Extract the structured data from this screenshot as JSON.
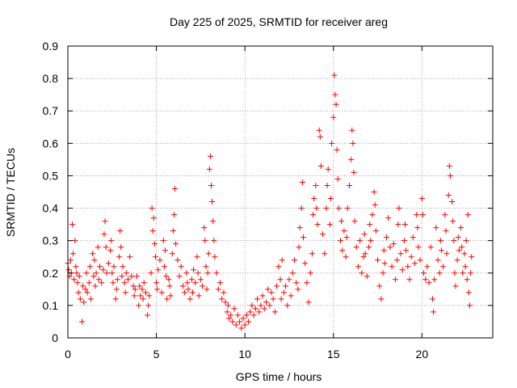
{
  "colors": {
    "series": "#ff0000",
    "grid": "#a0a0a0",
    "axis": "#000000",
    "background": "#ffffff"
  },
  "chart_data": {
    "type": "scatter",
    "title": "Day 225 of 2025, SRMTID for receiver areg",
    "xlabel": "GPS time / hours",
    "ylabel": "SRMTID / TECUs",
    "xlim": [
      0,
      24
    ],
    "ylim": [
      0,
      0.9
    ],
    "grid": true,
    "marker": "plus",
    "xticks": [
      0,
      5,
      10,
      15,
      20
    ],
    "xtick_labels": [
      "0",
      "5",
      "10",
      "15",
      "20"
    ],
    "yticks": [
      0,
      0.1,
      0.2,
      0.3,
      0.4,
      0.5,
      0.6,
      0.7,
      0.8,
      0.9
    ],
    "ytick_labels": [
      "0",
      "0.1",
      "0.2",
      "0.3",
      "0.4",
      "0.5",
      "0.6",
      "0.7",
      "0.8",
      "0.9"
    ],
    "series": [
      {
        "name": "SRMTID",
        "points": [
          [
            0.0,
            0.23
          ],
          [
            0.05,
            0.21
          ],
          [
            0.1,
            0.19
          ],
          [
            0.15,
            0.24
          ],
          [
            0.2,
            0.2
          ],
          [
            0.25,
            0.35
          ],
          [
            0.3,
            0.26
          ],
          [
            0.35,
            0.18
          ],
          [
            0.4,
            0.3
          ],
          [
            0.45,
            0.22
          ],
          [
            0.5,
            0.2
          ],
          [
            0.55,
            0.17
          ],
          [
            0.6,
            0.14
          ],
          [
            0.65,
            0.19
          ],
          [
            0.7,
            0.12
          ],
          [
            0.8,
            0.05
          ],
          [
            0.85,
            0.16
          ],
          [
            0.9,
            0.11
          ],
          [
            1.0,
            0.15
          ],
          [
            1.05,
            0.2
          ],
          [
            1.1,
            0.14
          ],
          [
            1.2,
            0.17
          ],
          [
            1.25,
            0.22
          ],
          [
            1.3,
            0.12
          ],
          [
            1.4,
            0.26
          ],
          [
            1.45,
            0.19
          ],
          [
            1.5,
            0.24
          ],
          [
            1.55,
            0.16
          ],
          [
            1.6,
            0.2
          ],
          [
            1.7,
            0.28
          ],
          [
            1.75,
            0.18
          ],
          [
            1.8,
            0.22
          ],
          [
            1.9,
            0.17
          ],
          [
            2.0,
            0.21
          ],
          [
            2.05,
            0.32
          ],
          [
            2.1,
            0.36
          ],
          [
            2.15,
            0.28
          ],
          [
            2.2,
            0.2
          ],
          [
            2.3,
            0.23
          ],
          [
            2.4,
            0.27
          ],
          [
            2.45,
            0.3
          ],
          [
            2.5,
            0.2
          ],
          [
            2.55,
            0.17
          ],
          [
            2.6,
            0.22
          ],
          [
            2.7,
            0.12
          ],
          [
            2.75,
            0.15
          ],
          [
            2.8,
            0.18
          ],
          [
            2.9,
            0.25
          ],
          [
            2.95,
            0.33
          ],
          [
            3.0,
            0.28
          ],
          [
            3.05,
            0.19
          ],
          [
            3.1,
            0.22
          ],
          [
            3.2,
            0.17
          ],
          [
            3.25,
            0.14
          ],
          [
            3.3,
            0.2
          ],
          [
            3.4,
            0.18
          ],
          [
            3.5,
            0.25
          ],
          [
            3.6,
            0.19
          ],
          [
            3.7,
            0.16
          ],
          [
            3.75,
            0.13
          ],
          [
            3.8,
            0.15
          ],
          [
            3.9,
            0.19
          ],
          [
            4.0,
            0.1
          ],
          [
            4.05,
            0.16
          ],
          [
            4.1,
            0.13
          ],
          [
            4.2,
            0.15
          ],
          [
            4.25,
            0.12
          ],
          [
            4.3,
            0.17
          ],
          [
            4.4,
            0.14
          ],
          [
            4.5,
            0.07
          ],
          [
            4.55,
            0.1
          ],
          [
            4.6,
            0.13
          ],
          [
            4.7,
            0.2
          ],
          [
            4.75,
            0.4
          ],
          [
            4.8,
            0.33
          ],
          [
            4.85,
            0.37
          ],
          [
            4.9,
            0.29
          ],
          [
            4.95,
            0.25
          ],
          [
            5.0,
            0.17
          ],
          [
            5.05,
            0.15
          ],
          [
            5.1,
            0.21
          ],
          [
            5.2,
            0.24
          ],
          [
            5.3,
            0.14
          ],
          [
            5.4,
            0.3
          ],
          [
            5.45,
            0.22
          ],
          [
            5.5,
            0.27
          ],
          [
            5.55,
            0.19
          ],
          [
            5.6,
            0.12
          ],
          [
            5.7,
            0.18
          ],
          [
            5.75,
            0.16
          ],
          [
            5.8,
            0.13
          ],
          [
            5.9,
            0.26
          ],
          [
            5.95,
            0.33
          ],
          [
            6.0,
            0.38
          ],
          [
            6.05,
            0.46
          ],
          [
            6.1,
            0.29
          ],
          [
            6.2,
            0.24
          ],
          [
            6.3,
            0.19
          ],
          [
            6.4,
            0.22
          ],
          [
            6.5,
            0.16
          ],
          [
            6.6,
            0.14
          ],
          [
            6.7,
            0.2
          ],
          [
            6.75,
            0.17
          ],
          [
            6.8,
            0.15
          ],
          [
            6.9,
            0.12
          ],
          [
            7.0,
            0.18
          ],
          [
            7.05,
            0.14
          ],
          [
            7.1,
            0.21
          ],
          [
            7.2,
            0.17
          ],
          [
            7.3,
            0.25
          ],
          [
            7.35,
            0.2
          ],
          [
            7.4,
            0.13
          ],
          [
            7.5,
            0.18
          ],
          [
            7.6,
            0.16
          ],
          [
            7.7,
            0.34
          ],
          [
            7.75,
            0.3
          ],
          [
            7.8,
            0.22
          ],
          [
            7.85,
            0.15
          ],
          [
            7.9,
            0.2
          ],
          [
            7.95,
            0.26
          ],
          [
            8.0,
            0.52
          ],
          [
            8.05,
            0.56
          ],
          [
            8.1,
            0.47
          ],
          [
            8.15,
            0.42
          ],
          [
            8.2,
            0.36
          ],
          [
            8.25,
            0.3
          ],
          [
            8.3,
            0.25
          ],
          [
            8.4,
            0.2
          ],
          [
            8.5,
            0.15
          ],
          [
            8.6,
            0.17
          ],
          [
            8.7,
            0.12
          ],
          [
            8.8,
            0.14
          ],
          [
            8.9,
            0.11
          ],
          [
            9.0,
            0.08
          ],
          [
            9.05,
            0.1
          ],
          [
            9.1,
            0.06
          ],
          [
            9.2,
            0.07
          ],
          [
            9.3,
            0.05
          ],
          [
            9.4,
            0.09
          ],
          [
            9.5,
            0.04
          ],
          [
            9.6,
            0.07
          ],
          [
            9.7,
            0.05
          ],
          [
            9.8,
            0.03
          ],
          [
            9.9,
            0.06
          ],
          [
            10.0,
            0.04
          ],
          [
            10.1,
            0.07
          ],
          [
            10.2,
            0.05
          ],
          [
            10.3,
            0.08
          ],
          [
            10.4,
            0.1
          ],
          [
            10.5,
            0.07
          ],
          [
            10.6,
            0.09
          ],
          [
            10.7,
            0.12
          ],
          [
            10.8,
            0.08
          ],
          [
            10.9,
            0.1
          ],
          [
            11.0,
            0.13
          ],
          [
            11.1,
            0.09
          ],
          [
            11.2,
            0.11
          ],
          [
            11.3,
            0.15
          ],
          [
            11.4,
            0.1
          ],
          [
            11.5,
            0.14
          ],
          [
            11.6,
            0.12
          ],
          [
            11.7,
            0.08
          ],
          [
            11.8,
            0.16
          ],
          [
            11.9,
            0.22
          ],
          [
            12.0,
            0.18
          ],
          [
            12.05,
            0.12
          ],
          [
            12.1,
            0.24
          ],
          [
            12.2,
            0.14
          ],
          [
            12.3,
            0.16
          ],
          [
            12.4,
            0.1
          ],
          [
            12.5,
            0.18
          ],
          [
            12.6,
            0.13
          ],
          [
            12.7,
            0.2
          ],
          [
            12.8,
            0.24
          ],
          [
            12.9,
            0.17
          ],
          [
            13.0,
            0.15
          ],
          [
            13.05,
            0.28
          ],
          [
            13.1,
            0.34
          ],
          [
            13.2,
            0.4
          ],
          [
            13.25,
            0.48
          ],
          [
            13.3,
            0.31
          ],
          [
            13.4,
            0.23
          ],
          [
            13.5,
            0.17
          ],
          [
            13.6,
            0.11
          ],
          [
            13.7,
            0.2
          ],
          [
            13.8,
            0.26
          ],
          [
            13.85,
            0.38
          ],
          [
            13.9,
            0.43
          ],
          [
            14.0,
            0.47
          ],
          [
            14.05,
            0.4
          ],
          [
            14.1,
            0.35
          ],
          [
            14.2,
            0.64
          ],
          [
            14.25,
            0.62
          ],
          [
            14.3,
            0.53
          ],
          [
            14.4,
            0.32
          ],
          [
            14.5,
            0.26
          ],
          [
            14.6,
            0.4
          ],
          [
            14.65,
            0.47
          ],
          [
            14.7,
            0.52
          ],
          [
            14.8,
            0.35
          ],
          [
            14.85,
            0.43
          ],
          [
            14.9,
            0.6
          ],
          [
            15.0,
            0.68
          ],
          [
            15.05,
            0.81
          ],
          [
            15.1,
            0.75
          ],
          [
            15.15,
            0.72
          ],
          [
            15.2,
            0.58
          ],
          [
            15.25,
            0.49
          ],
          [
            15.3,
            0.4
          ],
          [
            15.4,
            0.3
          ],
          [
            15.45,
            0.36
          ],
          [
            15.5,
            0.27
          ],
          [
            15.6,
            0.33
          ],
          [
            15.7,
            0.25
          ],
          [
            15.75,
            0.31
          ],
          [
            15.8,
            0.4
          ],
          [
            15.9,
            0.47
          ],
          [
            16.0,
            0.55
          ],
          [
            16.05,
            0.64
          ],
          [
            16.1,
            0.6
          ],
          [
            16.15,
            0.51
          ],
          [
            16.2,
            0.36
          ],
          [
            16.3,
            0.28
          ],
          [
            16.4,
            0.22
          ],
          [
            16.5,
            0.3
          ],
          [
            16.6,
            0.2
          ],
          [
            16.7,
            0.25
          ],
          [
            16.75,
            0.32
          ],
          [
            16.8,
            0.26
          ],
          [
            16.9,
            0.19
          ],
          [
            17.0,
            0.28
          ],
          [
            17.05,
            0.35
          ],
          [
            17.1,
            0.3
          ],
          [
            17.2,
            0.38
          ],
          [
            17.3,
            0.45
          ],
          [
            17.35,
            0.41
          ],
          [
            17.4,
            0.33
          ],
          [
            17.5,
            0.24
          ],
          [
            17.6,
            0.16
          ],
          [
            17.7,
            0.12
          ],
          [
            17.8,
            0.2
          ],
          [
            17.85,
            0.27
          ],
          [
            17.9,
            0.23
          ],
          [
            18.0,
            0.31
          ],
          [
            18.1,
            0.37
          ],
          [
            18.2,
            0.28
          ],
          [
            18.3,
            0.22
          ],
          [
            18.4,
            0.29
          ],
          [
            18.5,
            0.18
          ],
          [
            18.6,
            0.24
          ],
          [
            18.65,
            0.35
          ],
          [
            18.7,
            0.4
          ],
          [
            18.8,
            0.26
          ],
          [
            18.9,
            0.21
          ],
          [
            19.0,
            0.3
          ],
          [
            19.05,
            0.35
          ],
          [
            19.1,
            0.27
          ],
          [
            19.2,
            0.22
          ],
          [
            19.3,
            0.18
          ],
          [
            19.4,
            0.25
          ],
          [
            19.5,
            0.31
          ],
          [
            19.6,
            0.23
          ],
          [
            19.7,
            0.38
          ],
          [
            19.75,
            0.34
          ],
          [
            19.8,
            0.28
          ],
          [
            19.9,
            0.24
          ],
          [
            20.0,
            0.43
          ],
          [
            20.05,
            0.38
          ],
          [
            20.1,
            0.2
          ],
          [
            20.2,
            0.18
          ],
          [
            20.3,
            0.22
          ],
          [
            20.4,
            0.17
          ],
          [
            20.5,
            0.28
          ],
          [
            20.6,
            0.12
          ],
          [
            20.65,
            0.08
          ],
          [
            20.7,
            0.18
          ],
          [
            20.8,
            0.34
          ],
          [
            20.9,
            0.24
          ],
          [
            21.0,
            0.2
          ],
          [
            21.05,
            0.3
          ],
          [
            21.1,
            0.27
          ],
          [
            21.2,
            0.22
          ],
          [
            21.3,
            0.38
          ],
          [
            21.35,
            0.33
          ],
          [
            21.4,
            0.26
          ],
          [
            21.5,
            0.44
          ],
          [
            21.55,
            0.53
          ],
          [
            21.6,
            0.5
          ],
          [
            21.7,
            0.42
          ],
          [
            21.75,
            0.36
          ],
          [
            21.8,
            0.3
          ],
          [
            21.85,
            0.2
          ],
          [
            21.9,
            0.16
          ],
          [
            22.0,
            0.24
          ],
          [
            22.05,
            0.31
          ],
          [
            22.1,
            0.27
          ],
          [
            22.2,
            0.34
          ],
          [
            22.25,
            0.28
          ],
          [
            22.3,
            0.2
          ],
          [
            22.4,
            0.26
          ],
          [
            22.45,
            0.22
          ],
          [
            22.5,
            0.3
          ],
          [
            22.55,
            0.18
          ],
          [
            22.6,
            0.38
          ],
          [
            22.65,
            0.14
          ],
          [
            22.7,
            0.1
          ],
          [
            22.75,
            0.2
          ],
          [
            22.8,
            0.25
          ]
        ]
      }
    ]
  }
}
